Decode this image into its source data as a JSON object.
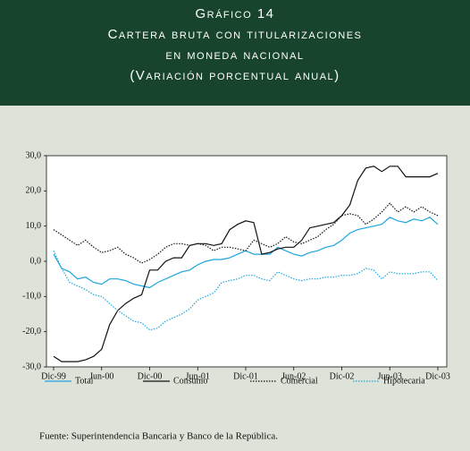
{
  "chart_data": {
    "type": "line",
    "title": [
      "Gráfico 14",
      "Cartera bruta con titularizaciones",
      "en moneda nacional",
      "(Variación porcentual anual)"
    ],
    "source": "Fuente: Superintendencia Bancaria y Banco de la República.",
    "categories": [
      "Dic-99",
      null,
      null,
      null,
      null,
      null,
      "Jun-00",
      null,
      null,
      null,
      null,
      null,
      "Dic-00",
      null,
      null,
      null,
      null,
      null,
      "Jun-01",
      null,
      null,
      null,
      null,
      null,
      "Dic-01",
      null,
      null,
      null,
      null,
      null,
      "Jun-02",
      null,
      null,
      null,
      null,
      null,
      "Dic-02",
      null,
      null,
      null,
      null,
      null,
      "Jun-03",
      null,
      null,
      null,
      null,
      null,
      "Dic-03"
    ],
    "ylim": [
      -30,
      30
    ],
    "yticks": [
      {
        "value": 30,
        "label": "30,0"
      },
      {
        "value": 20,
        "label": "20,0"
      },
      {
        "value": 10,
        "label": "10,0"
      },
      {
        "value": 0,
        "label": "0,0"
      },
      {
        "value": -10,
        "label": "-10,0"
      },
      {
        "value": -20,
        "label": "-20,0"
      },
      {
        "value": -30,
        "label": "-30,0"
      }
    ],
    "grid": false,
    "series": [
      {
        "name": "Total",
        "color": "#1ea5dc",
        "style": "solid",
        "values": [
          2,
          -2,
          -3,
          -5,
          -4.5,
          -6,
          -6.5,
          -5,
          -5,
          -5.5,
          -6.5,
          -7,
          -7.5,
          -6,
          -5,
          -4,
          -3,
          -2.5,
          -1,
          0,
          0.5,
          0.5,
          1,
          2,
          3,
          2,
          2,
          2,
          4,
          3,
          2,
          1.5,
          2.5,
          3,
          4,
          4.5,
          6,
          8,
          9,
          9.5,
          10,
          10.5,
          12.5,
          11.5,
          11,
          12,
          11.5,
          12.5,
          10.5
        ]
      },
      {
        "name": "Consumo",
        "color": "#111111",
        "style": "solid",
        "values": [
          -27,
          -28.5,
          -28.5,
          -28.5,
          -28,
          -27,
          -25,
          -18,
          -14,
          -12,
          -10.5,
          -9.5,
          -2.5,
          -2.5,
          0,
          1,
          1,
          4.5,
          5,
          5,
          4.5,
          5,
          9,
          10.5,
          11.5,
          11,
          2,
          2.5,
          3.5,
          4,
          4,
          6,
          9.5,
          10,
          10.5,
          11,
          13,
          16,
          23,
          26.5,
          27,
          25.5,
          27,
          27,
          24,
          24,
          24,
          24,
          25
        ]
      },
      {
        "name": "Comercial",
        "color": "#111111",
        "style": "dotted",
        "values": [
          9,
          7.5,
          6,
          4.5,
          6,
          4,
          2.5,
          3,
          4,
          2,
          1,
          -0.5,
          0.5,
          2,
          4,
          5,
          5,
          4.5,
          5,
          4.5,
          3,
          4,
          4,
          3.5,
          3,
          6,
          5,
          4,
          5,
          7,
          5.5,
          5,
          6,
          7,
          9,
          10.5,
          13,
          13.5,
          13,
          10.5,
          12,
          14,
          16.5,
          14,
          15.5,
          14,
          15.5,
          14,
          13
        ]
      },
      {
        "name": "Hipotecaria",
        "color": "#1ea5dc",
        "style": "dotted",
        "values": [
          3,
          -2,
          -6,
          -7,
          -8,
          -9.5,
          -10,
          -12,
          -14,
          -15.5,
          -17,
          -17.5,
          -19.5,
          -19,
          -17,
          -16,
          -15,
          -13.5,
          -11,
          -10,
          -9,
          -6,
          -5.5,
          -5,
          -4,
          -4,
          -5,
          -5.5,
          -3,
          -4,
          -5,
          -5.5,
          -5,
          -5,
          -4.5,
          -4.5,
          -4,
          -4,
          -3.5,
          -2,
          -2.5,
          -5,
          -3,
          -3.5,
          -3.5,
          -3.5,
          -3,
          -3,
          -5.5
        ]
      }
    ]
  }
}
